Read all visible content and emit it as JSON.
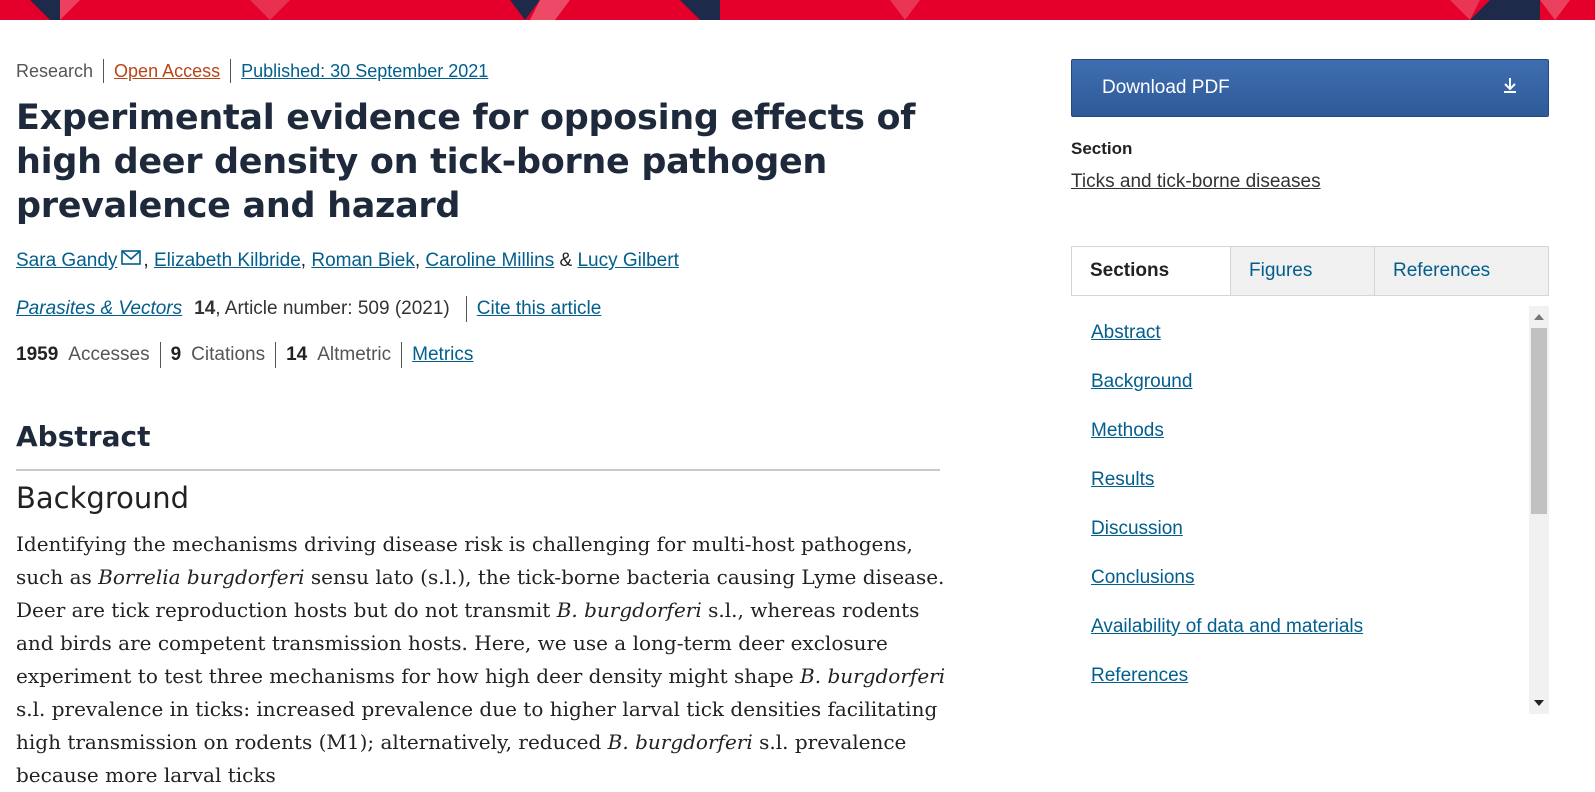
{
  "header": {
    "colors": {
      "bar": "#e4002b",
      "accent_dark": "#1e2a4a",
      "accent_light": "#f06a80"
    }
  },
  "article": {
    "type": "Research",
    "access": "Open Access",
    "published": "Published: 30 September 2021",
    "title": "Experimental evidence for opposing effects of high deer density on tick-borne pathogen prevalence and hazard",
    "authors": [
      {
        "name": "Sara Gandy",
        "sep": ""
      },
      {
        "name": "Elizabeth Kilbride",
        "sep": ", "
      },
      {
        "name": "Roman Biek",
        "sep": ", "
      },
      {
        "name": "Caroline Millins",
        "sep": ", "
      },
      {
        "name": "Lucy Gilbert",
        "sep": " & "
      }
    ],
    "journal": "Parasites & Vectors",
    "volume": "14",
    "article_number": ", Article number: 509 (2021)",
    "cite_link": "Cite this article",
    "metrics": {
      "accesses_count": "1959",
      "accesses_label": "Accesses",
      "citations_count": "9",
      "citations_label": "Citations",
      "altmetric_count": "14",
      "altmetric_label": "Altmetric",
      "metrics_link": "Metrics"
    },
    "abstract_heading": "Abstract",
    "background_heading": "Background",
    "abstract_text_parts": [
      "Identifying the mechanisms driving disease risk is challenging for multi-host pathogens, such as ",
      "Borrelia burgdorferi",
      " sensu lato (s.l.), the tick-borne bacteria causing Lyme disease. Deer are tick reproduction hosts but do not transmit ",
      "B. burgdorferi",
      " s.l., whereas rodents and birds are competent transmission hosts. Here, we use a long-term deer exclosure experiment to test three mechanisms for how high deer density might shape ",
      "B. burgdorferi",
      " s.l. prevalence in ticks: increased prevalence due to higher larval tick densities facilitating high transmission on rodents (M1); alternatively, reduced ",
      "B. burgdorferi",
      " s.l. prevalence because more larval ticks"
    ]
  },
  "sidebar": {
    "download_label": "Download PDF",
    "download_icon": "download-arrow-icon",
    "section_label": "Section",
    "section_value": "Ticks and tick-borne diseases",
    "tabs": [
      "Sections",
      "Figures",
      "References"
    ],
    "toc": [
      "Abstract",
      "Background",
      "Methods",
      "Results",
      "Discussion",
      "Conclusions",
      "Availability of data and materials",
      "References"
    ]
  }
}
